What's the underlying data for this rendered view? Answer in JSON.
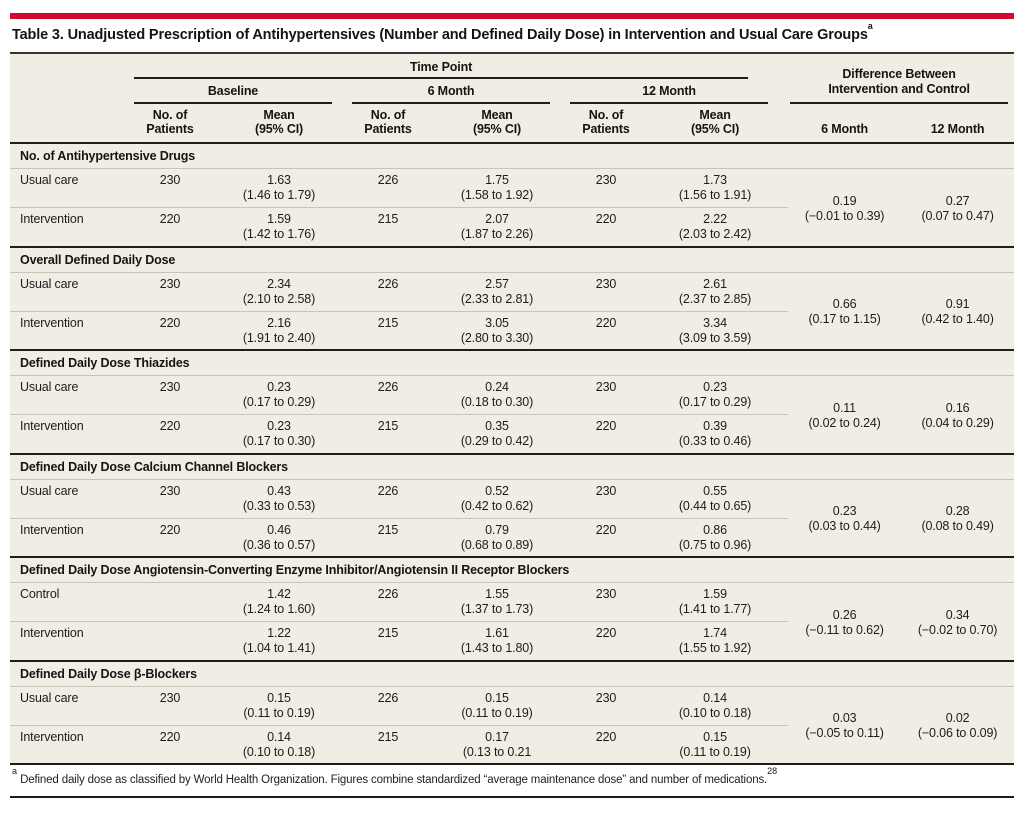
{
  "theme": {
    "accent_red": "#cf0a2c",
    "table_bg": "#f0eee4",
    "rule_dark": "#1d1d1b",
    "rule_light": "#c9c5b6",
    "text_color": "#1c1c1a"
  },
  "title": {
    "text": "Table 3. Unadjusted Prescription of Antihypertensives (Number and Defined Daily Dose) in Intervention and Usual Care Groups",
    "superscript": "a"
  },
  "header": {
    "time_point_label": "Time Point",
    "difference_line1": "Difference Between",
    "difference_line2": "Intervention and Control",
    "group_labels": [
      "Baseline",
      "6 Month",
      "12 Month"
    ],
    "sub_patients_line1": "No. of",
    "sub_patients_line2": "Patients",
    "sub_mean_line1": "Mean",
    "sub_mean_line2": "(95% CI)",
    "diff_sub_labels": [
      "6 Month",
      "12 Month"
    ]
  },
  "sections": [
    {
      "title": "No. of Antihypertensive Drugs",
      "rows": [
        {
          "label": "Usual care",
          "cells": [
            {
              "n": "230",
              "mean": "1.63",
              "ci": "(1.46 to 1.79)"
            },
            {
              "n": "226",
              "mean": "1.75",
              "ci": "(1.58 to 1.92)"
            },
            {
              "n": "230",
              "mean": "1.73",
              "ci": "(1.56 to 1.91)"
            }
          ]
        },
        {
          "label": "Intervention",
          "cells": [
            {
              "n": "220",
              "mean": "1.59",
              "ci": "(1.42 to 1.76)"
            },
            {
              "n": "215",
              "mean": "2.07",
              "ci": "(1.87 to 2.26)"
            },
            {
              "n": "220",
              "mean": "2.22",
              "ci": "(2.03 to 2.42)"
            }
          ]
        }
      ],
      "diff": [
        {
          "value": "0.19",
          "ci": "(−0.01 to 0.39)"
        },
        {
          "value": "0.27",
          "ci": "(0.07 to 0.47)"
        }
      ]
    },
    {
      "title": "Overall Defined Daily Dose",
      "rows": [
        {
          "label": "Usual care",
          "cells": [
            {
              "n": "230",
              "mean": "2.34",
              "ci": "(2.10 to 2.58)"
            },
            {
              "n": "226",
              "mean": "2.57",
              "ci": "(2.33 to 2.81)"
            },
            {
              "n": "230",
              "mean": "2.61",
              "ci": "(2.37 to 2.85)"
            }
          ]
        },
        {
          "label": "Intervention",
          "cells": [
            {
              "n": "220",
              "mean": "2.16",
              "ci": "(1.91 to 2.40)"
            },
            {
              "n": "215",
              "mean": "3.05",
              "ci": "(2.80 to 3.30)"
            },
            {
              "n": "220",
              "mean": "3.34",
              "ci": "(3.09 to 3.59)"
            }
          ]
        }
      ],
      "diff": [
        {
          "value": "0.66",
          "ci": "(0.17 to 1.15)"
        },
        {
          "value": "0.91",
          "ci": "(0.42 to 1.40)"
        }
      ]
    },
    {
      "title": "Defined Daily Dose Thiazides",
      "rows": [
        {
          "label": "Usual care",
          "cells": [
            {
              "n": "230",
              "mean": "0.23",
              "ci": "(0.17 to 0.29)"
            },
            {
              "n": "226",
              "mean": "0.24",
              "ci": "(0.18 to 0.30)"
            },
            {
              "n": "230",
              "mean": "0.23",
              "ci": "(0.17 to 0.29)"
            }
          ]
        },
        {
          "label": "Intervention",
          "cells": [
            {
              "n": "220",
              "mean": "0.23",
              "ci": "(0.17 to 0.30)"
            },
            {
              "n": "215",
              "mean": "0.35",
              "ci": "(0.29 to 0.42)"
            },
            {
              "n": "220",
              "mean": "0.39",
              "ci": "(0.33 to 0.46)"
            }
          ]
        }
      ],
      "diff": [
        {
          "value": "0.11",
          "ci": "(0.02 to 0.24)"
        },
        {
          "value": "0.16",
          "ci": "(0.04 to 0.29)"
        }
      ]
    },
    {
      "title": "Defined Daily Dose Calcium Channel Blockers",
      "rows": [
        {
          "label": "Usual care",
          "cells": [
            {
              "n": "230",
              "mean": "0.43",
              "ci": "(0.33 to 0.53)"
            },
            {
              "n": "226",
              "mean": "0.52",
              "ci": "(0.42 to 0.62)"
            },
            {
              "n": "230",
              "mean": "0.55",
              "ci": "(0.44 to 0.65)"
            }
          ]
        },
        {
          "label": "Intervention",
          "cells": [
            {
              "n": "220",
              "mean": "0.46",
              "ci": "(0.36 to 0.57)"
            },
            {
              "n": "215",
              "mean": "0.79",
              "ci": "(0.68 to 0.89)"
            },
            {
              "n": "220",
              "mean": "0.86",
              "ci": "(0.75 to 0.96)"
            }
          ]
        }
      ],
      "diff": [
        {
          "value": "0.23",
          "ci": "(0.03 to 0.44)"
        },
        {
          "value": "0.28",
          "ci": "(0.08 to 0.49)"
        }
      ]
    },
    {
      "title": "Defined Daily Dose Angiotensin-Converting Enzyme Inhibitor/Angiotensin II Receptor Blockers",
      "rows": [
        {
          "label": "Control",
          "cells": [
            {
              "n": "",
              "mean": "1.42",
              "ci": "(1.24 to 1.60)"
            },
            {
              "n": "226",
              "mean": "1.55",
              "ci": "(1.37 to 1.73)"
            },
            {
              "n": "230",
              "mean": "1.59",
              "ci": "(1.41 to 1.77)"
            }
          ]
        },
        {
          "label": "Intervention",
          "cells": [
            {
              "n": "",
              "mean": "1.22",
              "ci": "(1.04 to 1.41)"
            },
            {
              "n": "215",
              "mean": "1.61",
              "ci": "(1.43 to 1.80)"
            },
            {
              "n": "220",
              "mean": "1.74",
              "ci": "(1.55 to 1.92)"
            }
          ]
        }
      ],
      "diff": [
        {
          "value": "0.26",
          "ci": "(−0.11 to 0.62)"
        },
        {
          "value": "0.34",
          "ci": "(−0.02 to 0.70)"
        }
      ]
    },
    {
      "title": "Defined Daily Dose β-Blockers",
      "rows": [
        {
          "label": "Usual care",
          "cells": [
            {
              "n": "230",
              "mean": "0.15",
              "ci": "(0.11 to 0.19)"
            },
            {
              "n": "226",
              "mean": "0.15",
              "ci": "(0.11 to 0.19)"
            },
            {
              "n": "230",
              "mean": "0.14",
              "ci": "(0.10 to 0.18)"
            }
          ]
        },
        {
          "label": "Intervention",
          "cells": [
            {
              "n": "220",
              "mean": "0.14",
              "ci": "(0.10 to 0.18)"
            },
            {
              "n": "215",
              "mean": "0.17",
              "ci": "(0.13 to 0.21"
            },
            {
              "n": "220",
              "mean": "0.15",
              "ci": "(0.11 to 0.19)"
            }
          ]
        }
      ],
      "diff": [
        {
          "value": "0.03",
          "ci": "(−0.05 to 0.11)"
        },
        {
          "value": "0.02",
          "ci": "(−0.06 to 0.09)"
        }
      ]
    }
  ],
  "footnote": {
    "marker": "a",
    "text": "Defined daily dose as classified by World Health Organization. Figures combine standardized “average maintenance dose” and number of medications.",
    "reference": "28"
  }
}
